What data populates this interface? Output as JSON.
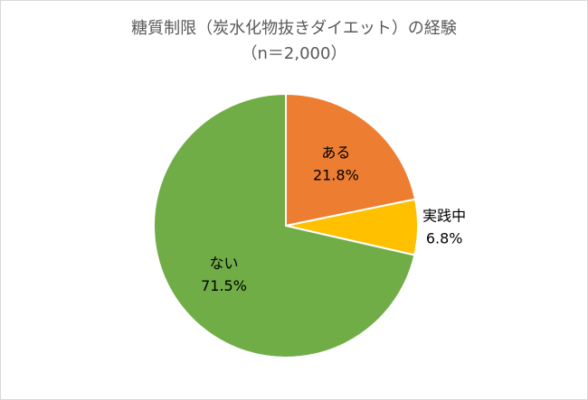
{
  "chart_data": {
    "type": "pie",
    "title": "糖質制限（炭水化物抜きダイエット）の経験",
    "subtitle": "（n＝2,000）",
    "categories": [
      "ある",
      "実践中",
      "ない"
    ],
    "values": [
      21.8,
      6.8,
      71.5
    ],
    "value_labels": [
      "21.8%",
      "6.8%",
      "71.5%"
    ],
    "colors": [
      "#ED7D31",
      "#FFC000",
      "#70AD47"
    ]
  }
}
